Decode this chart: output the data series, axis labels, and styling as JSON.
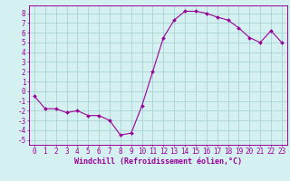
{
  "x": [
    0,
    1,
    2,
    3,
    4,
    5,
    6,
    7,
    8,
    9,
    10,
    11,
    12,
    13,
    14,
    15,
    16,
    17,
    18,
    19,
    20,
    21,
    22,
    23
  ],
  "y": [
    -0.5,
    -1.8,
    -1.8,
    -2.2,
    -2.0,
    -2.5,
    -2.5,
    -3.0,
    -4.5,
    -4.3,
    -1.5,
    2.0,
    5.5,
    7.3,
    8.2,
    8.2,
    8.0,
    7.6,
    7.3,
    6.5,
    5.5,
    5.0,
    6.2,
    5.0
  ],
  "line_color": "#990099",
  "marker": "D",
  "marker_size": 2.0,
  "bg_color": "#d4f0f0",
  "grid_color": "#aad4d4",
  "xlabel": "Windchill (Refroidissement éolien,°C)",
  "xlabel_color": "#990099",
  "ylim": [
    -5.5,
    8.8
  ],
  "xlim": [
    -0.5,
    23.5
  ],
  "yticks": [
    -5,
    -4,
    -3,
    -2,
    -1,
    0,
    1,
    2,
    3,
    4,
    5,
    6,
    7,
    8
  ],
  "xticks": [
    0,
    1,
    2,
    3,
    4,
    5,
    6,
    7,
    8,
    9,
    10,
    11,
    12,
    13,
    14,
    15,
    16,
    17,
    18,
    19,
    20,
    21,
    22,
    23
  ],
  "tick_color": "#990099",
  "tick_fontsize": 5.5,
  "xlabel_fontsize": 6.0,
  "font": "monospace"
}
